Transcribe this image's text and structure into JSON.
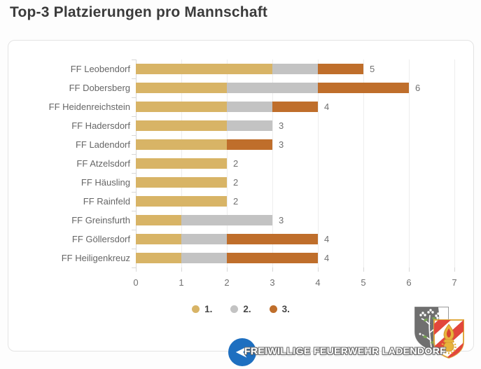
{
  "page": {
    "title": "Top-3 Platzierungen pro Mannschaft"
  },
  "chart_data": {
    "type": "bar",
    "orientation": "horizontal",
    "stacked": true,
    "title": "Top-3 Platzierungen pro Mannschaft",
    "categories": [
      "FF Leobendorf",
      "FF Dobersberg",
      "FF Heidenreichstein",
      "FF Hadersdorf",
      "FF Ladendorf",
      "FF Atzelsdorf",
      "FF Häusling",
      "FF Rainfeld",
      "FF Greinsfurth",
      "FF Göllersdorf",
      "FF Heiligenkreuz"
    ],
    "series": [
      {
        "name": "1.",
        "color": "#D8B466",
        "values": [
          3,
          2,
          2,
          2,
          2,
          2,
          2,
          2,
          1,
          1,
          1
        ]
      },
      {
        "name": "2.",
        "color": "#C3C3C3",
        "values": [
          1,
          2,
          1,
          1,
          0,
          0,
          0,
          0,
          2,
          1,
          1
        ]
      },
      {
        "name": "3.",
        "color": "#BF6E2B",
        "values": [
          1,
          2,
          1,
          0,
          1,
          0,
          0,
          0,
          0,
          2,
          2
        ]
      }
    ],
    "totals": [
      5,
      6,
      4,
      3,
      3,
      2,
      2,
      2,
      3,
      4,
      4
    ],
    "xlabel": "",
    "ylabel": "",
    "xlim": [
      0,
      7
    ],
    "x_ticks": [
      "0",
      "1",
      "2",
      "3",
      "4",
      "5",
      "6",
      "7"
    ],
    "grid": true,
    "legend_position": "bottom"
  },
  "watermark": {
    "text": "FREIWILLIGE FEUERWEHR LADENDORF",
    "badge_color": "#1E6FC0"
  },
  "logos": {
    "left_shield": "ladendorf-coat-of-arms",
    "right_shield": "austrian-fire-brigade-emblem"
  }
}
